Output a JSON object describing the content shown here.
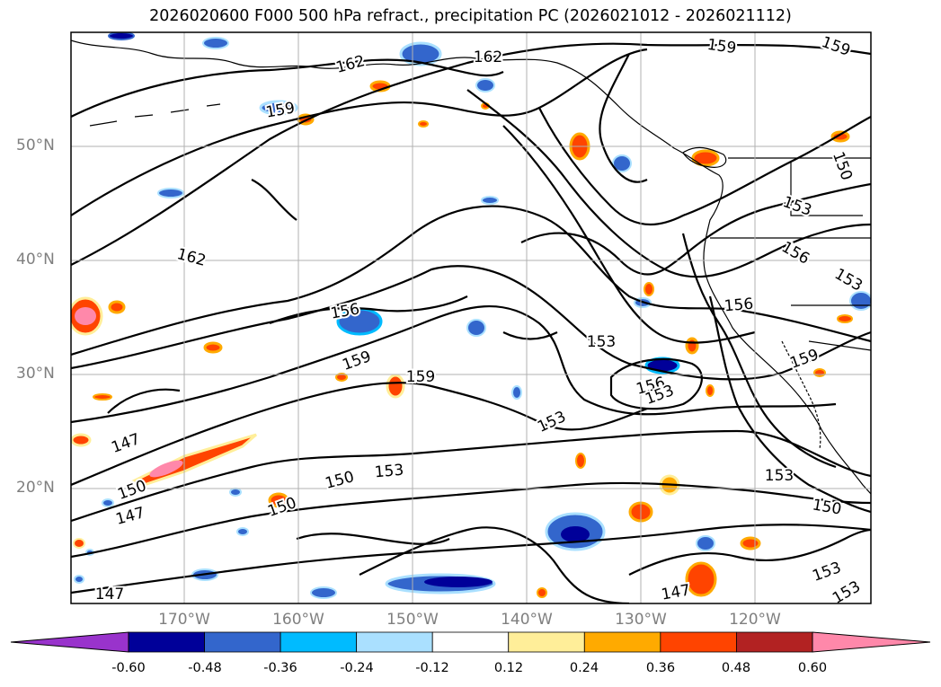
{
  "title": "2026020600 F000 500 hPa refract., precipitation PC (2026021012 - 2026021112)",
  "lat_labels": [
    "50°N",
    "40°N",
    "30°N",
    "20°N"
  ],
  "lon_labels": [
    "170°W",
    "160°W",
    "150°W",
    "140°W",
    "130°W",
    "120°W"
  ],
  "contour_labels": [
    "162",
    "162",
    "159",
    "159",
    "159",
    "162",
    "153",
    "150",
    "156",
    "156",
    "153",
    "153",
    "153",
    "153",
    "159",
    "159",
    "156",
    "153",
    "150",
    "147",
    "150",
    "147",
    "150",
    "153",
    "153",
    "150",
    "147",
    "147",
    "153",
    "156",
    "159"
  ],
  "colorbar": {
    "ticks": [
      "-0.60",
      "-0.48",
      "-0.36",
      "-0.24",
      "-0.12",
      "0.12",
      "0.24",
      "0.36",
      "0.48",
      "0.60"
    ],
    "colors": [
      "#9933cc",
      "#000099",
      "#3366cc",
      "#00bbff",
      "#aae0ff",
      "#ffffff",
      "#ffee99",
      "#ffaa00",
      "#ff4400",
      "#b22222",
      "#ff88aa"
    ]
  }
}
